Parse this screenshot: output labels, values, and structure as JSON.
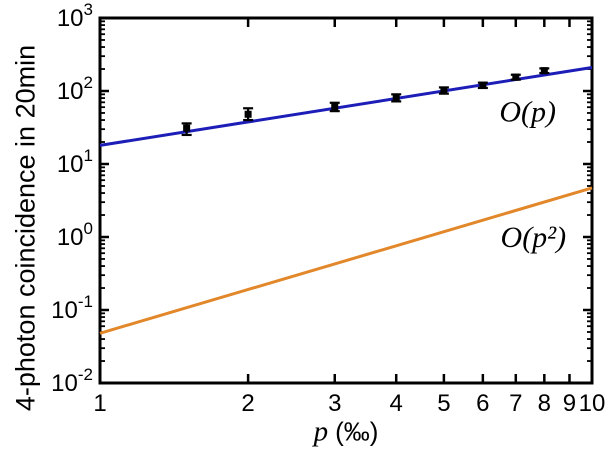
{
  "figure": {
    "background": "#ffffff",
    "xlabel_var": "p",
    "xlabel_unit": "(‰)"
  },
  "chart_data": {
    "type": "line",
    "title": "",
    "xlabel": "p (‰)",
    "ylabel": "4-photon coincidence in 20min",
    "x_scale": "log",
    "y_scale": "log",
    "xlim": [
      1,
      10
    ],
    "ylim": [
      0.01,
      1000
    ],
    "x_ticks": [
      1,
      2,
      3,
      4,
      5,
      6,
      7,
      8,
      9,
      10
    ],
    "y_tick_exponents": [
      3,
      2,
      1,
      0,
      -1,
      -2
    ],
    "grid": false,
    "legend_position": "none",
    "axis_color": "#000000",
    "series": [
      {
        "name": "O(p) linear-scaling fit line",
        "type": "line",
        "color": "#1d1db8",
        "x": [
          1,
          10
        ],
        "y": [
          18,
          210
        ]
      },
      {
        "name": "O(p²) quadratic-scaling guide line",
        "type": "line",
        "color": "#e2882b",
        "x": [
          1,
          10
        ],
        "y": [
          0.048,
          4.7
        ]
      },
      {
        "name": "measured 4-photon coincidence counts",
        "type": "scatter",
        "marker": "square",
        "color": "#000000",
        "x": [
          1.5,
          2,
          3,
          4,
          5,
          6,
          7,
          8
        ],
        "y": [
          31,
          48,
          61,
          81,
          102,
          120,
          155,
          190
        ],
        "y_err_plus": [
          5,
          10,
          8,
          9,
          10,
          10,
          12,
          14
        ],
        "y_err_minus": [
          6,
          8,
          8,
          9,
          10,
          10,
          12,
          14
        ]
      }
    ],
    "annotations": [
      {
        "text": "O(p)",
        "x": 7.4,
        "y": 52,
        "color": "#000000"
      },
      {
        "text": "O(p²)",
        "x": 7.6,
        "y": 1.0,
        "color": "#000000"
      }
    ]
  }
}
